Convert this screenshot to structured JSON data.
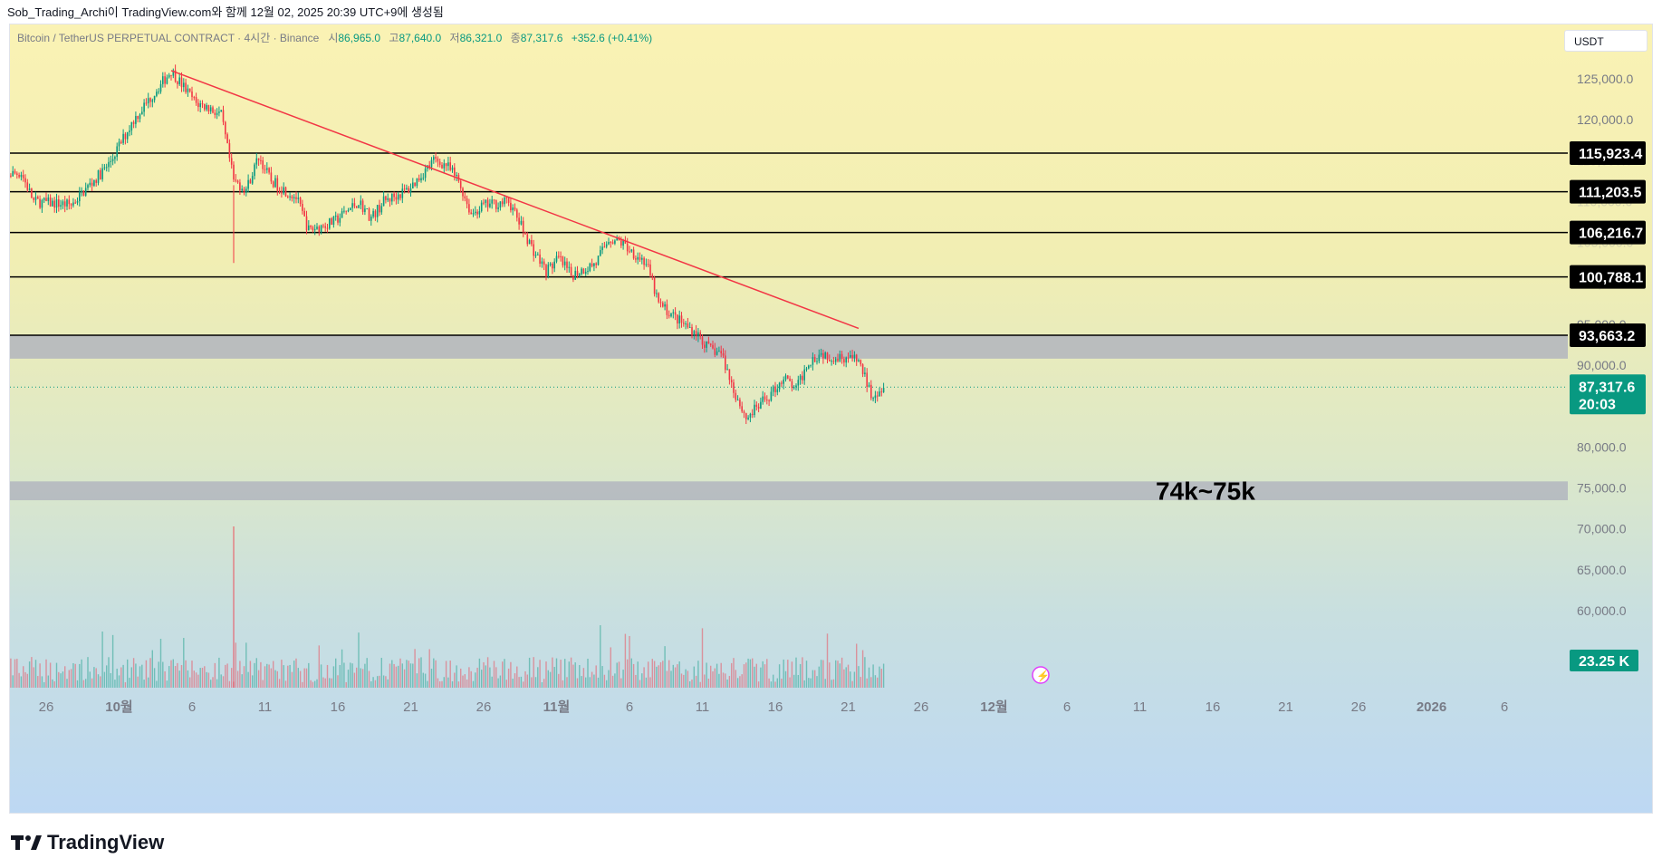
{
  "header": {
    "caption": "Sob_Trading_Archi이 TradingView.com와 함께 12월 02, 2025 20:39 UTC+9에 생성됨"
  },
  "symbol": {
    "title": "Bitcoin / TetherUS PERPETUAL CONTRACT · 4시간 · Binance",
    "open_label": "시",
    "open": "86,965.0",
    "high_label": "고",
    "high": "87,640.0",
    "low_label": "저",
    "low": "86,321.0",
    "close_label": "종",
    "close": "87,317.6",
    "change": "+352.6 (+0.41%)"
  },
  "toolbar": {
    "currency": "USDT"
  },
  "footer": {
    "brand": "TradingView"
  },
  "colors": {
    "up": "#089981",
    "down": "#f23645",
    "trendline": "#f23645",
    "level_line": "#000000",
    "zone": "#b2b5be",
    "price_tag": "#089981"
  },
  "chart_data": {
    "type": "candlestick",
    "symbol": "BTCUSDT.P",
    "timeframe": "4시간",
    "ylim": [
      51500,
      129000
    ],
    "y_ticks": [
      "125,000.0",
      "120,000.0",
      "115,000.0",
      "110,000.0",
      "105,000.0",
      "100,000.0",
      "95,000.0",
      "90,000.0",
      "85,000.0",
      "80,000.0",
      "75,000.0",
      "70,000.0",
      "65,000.0",
      "60,000.0"
    ],
    "x_ticks": [
      "26",
      "10월",
      "6",
      "11",
      "16",
      "21",
      "26",
      "11월",
      "6",
      "11",
      "16",
      "21",
      "26",
      "12월",
      "6",
      "11",
      "16",
      "21",
      "26",
      "2026",
      "6"
    ],
    "price_path": [
      [
        "2025-09-22",
        113200
      ],
      [
        "2025-09-24",
        113500
      ],
      [
        "2025-09-25",
        110000
      ],
      [
        "2025-09-28",
        109600
      ],
      [
        "2025-10-01",
        114500
      ],
      [
        "2025-10-03",
        120000
      ],
      [
        "2025-10-05",
        124000
      ],
      [
        "2025-10-06",
        126000
      ],
      [
        "2025-10-08",
        122000
      ],
      [
        "2025-10-09",
        121500
      ],
      [
        "2025-10-10",
        120500
      ],
      [
        "2025-10-11",
        112500
      ],
      [
        "2025-10-12",
        111500
      ],
      [
        "2025-10-13",
        115500
      ],
      [
        "2025-10-14",
        112500
      ],
      [
        "2025-10-16",
        110500
      ],
      [
        "2025-10-17",
        106500
      ],
      [
        "2025-10-19",
        107500
      ],
      [
        "2025-10-21",
        110000
      ],
      [
        "2025-10-22",
        108000
      ],
      [
        "2025-10-23",
        110000
      ],
      [
        "2025-10-25",
        111500
      ],
      [
        "2025-10-27",
        115000
      ],
      [
        "2025-10-28",
        114500
      ],
      [
        "2025-10-29",
        112500
      ],
      [
        "2025-10-30",
        108500
      ],
      [
        "2025-10-31",
        109500
      ],
      [
        "2025-11-02",
        110000
      ],
      [
        "2025-11-04",
        104000
      ],
      [
        "2025-11-05",
        101500
      ],
      [
        "2025-11-06",
        103000
      ],
      [
        "2025-11-07",
        101000
      ],
      [
        "2025-11-09",
        102500
      ],
      [
        "2025-11-10",
        105500
      ],
      [
        "2025-11-11",
        105000
      ],
      [
        "2025-11-13",
        102500
      ],
      [
        "2025-11-14",
        97500
      ],
      [
        "2025-11-16",
        95000
      ],
      [
        "2025-11-17",
        94000
      ],
      [
        "2025-11-18",
        92000
      ],
      [
        "2025-11-19",
        91500
      ],
      [
        "2025-11-20",
        87000
      ],
      [
        "2025-11-21",
        83500
      ],
      [
        "2025-11-22",
        85000
      ],
      [
        "2025-11-23",
        86500
      ],
      [
        "2025-11-24",
        88500
      ],
      [
        "2025-11-25",
        87000
      ],
      [
        "2025-11-26",
        90500
      ],
      [
        "2025-11-27",
        91500
      ],
      [
        "2025-11-28",
        91000
      ],
      [
        "2025-11-29",
        91000
      ],
      [
        "2025-11-30",
        90500
      ],
      [
        "2025-12-01",
        86500
      ],
      [
        "2025-12-02",
        87317.6
      ]
    ],
    "trendline": {
      "from": [
        "2025-10-06",
        126000
      ],
      "to": [
        "2025-11-30",
        94500
      ]
    },
    "levels": [
      "115,923.4",
      "111,203.5",
      "106,216.7",
      "100,788.1",
      "93,663.2"
    ],
    "zones": [
      {
        "from": 90800,
        "to": 93663.2
      },
      {
        "from": 73500,
        "to": 75800,
        "label": "74k~75k"
      }
    ],
    "last_price": "87,317.6",
    "countdown": "20:03",
    "volume_last": "23.25 K"
  }
}
